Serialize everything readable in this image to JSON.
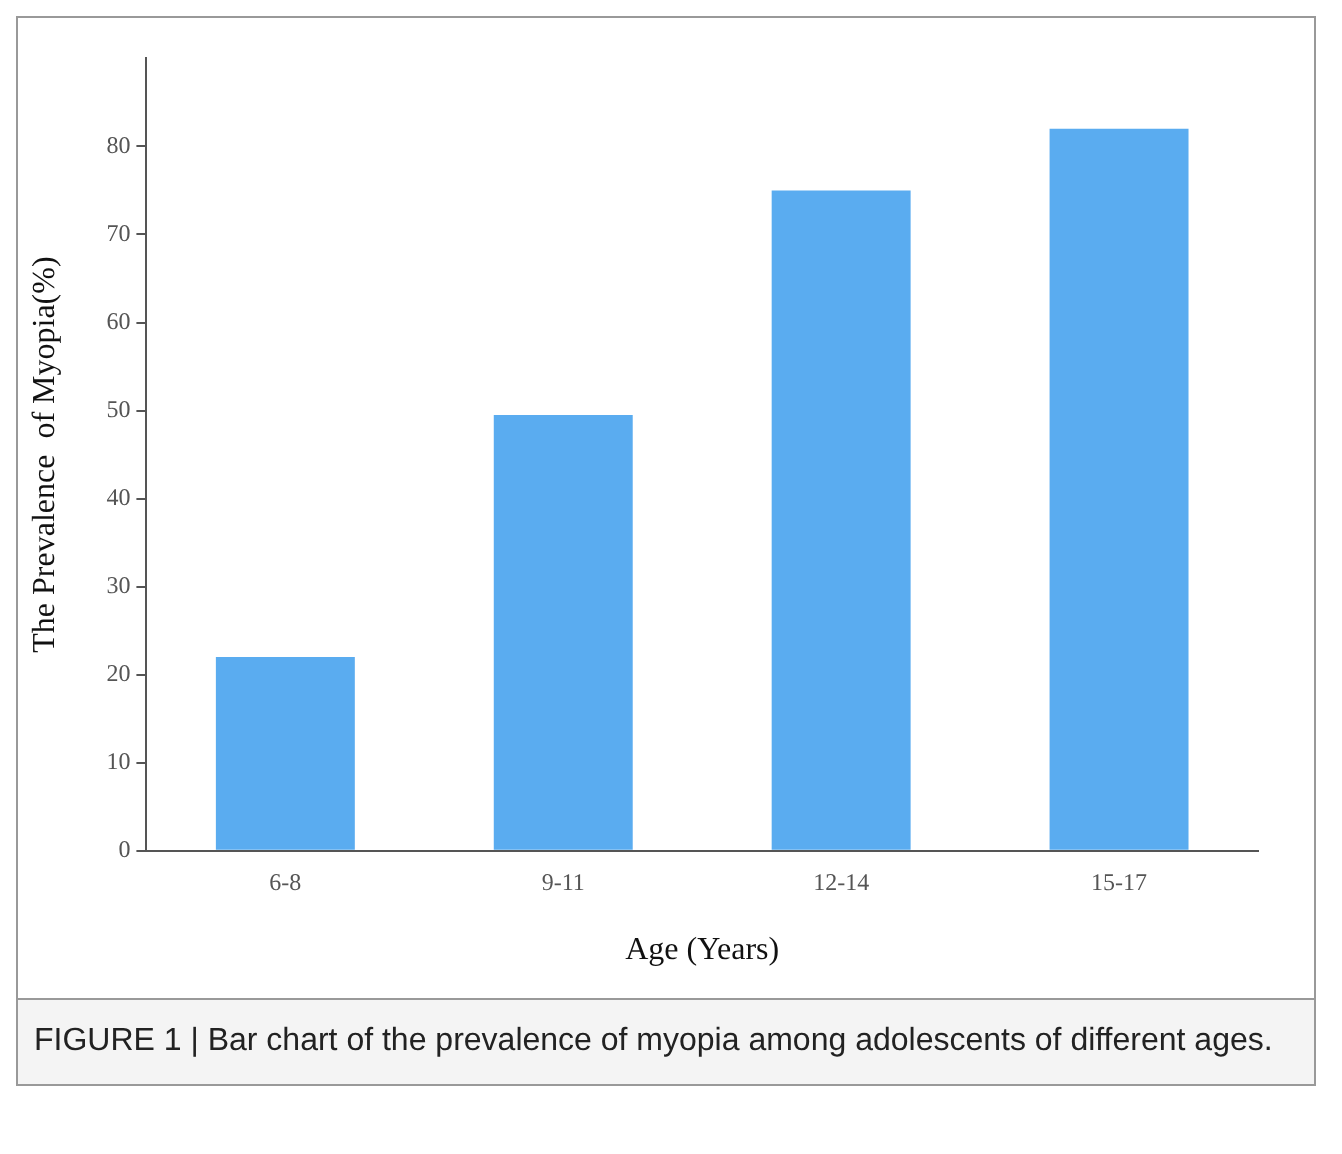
{
  "chart_data": {
    "type": "bar",
    "xlabel": "Age (Years)",
    "ylabel": "The Prevalence  of Myopia(%)",
    "categories": [
      "6-8",
      "9-11",
      "12-14",
      "15-17"
    ],
    "values": [
      22,
      49.5,
      75,
      82
    ],
    "color": "#5aacf0",
    "ylim": [
      0,
      90
    ],
    "yticks": [
      0,
      10,
      20,
      30,
      40,
      50,
      60,
      70,
      80
    ],
    "grid": false,
    "legend": false,
    "annotations": [
      "FIGURE 1 | Bar chart of the prevalence of myopia among adolescents of different ages."
    ]
  }
}
